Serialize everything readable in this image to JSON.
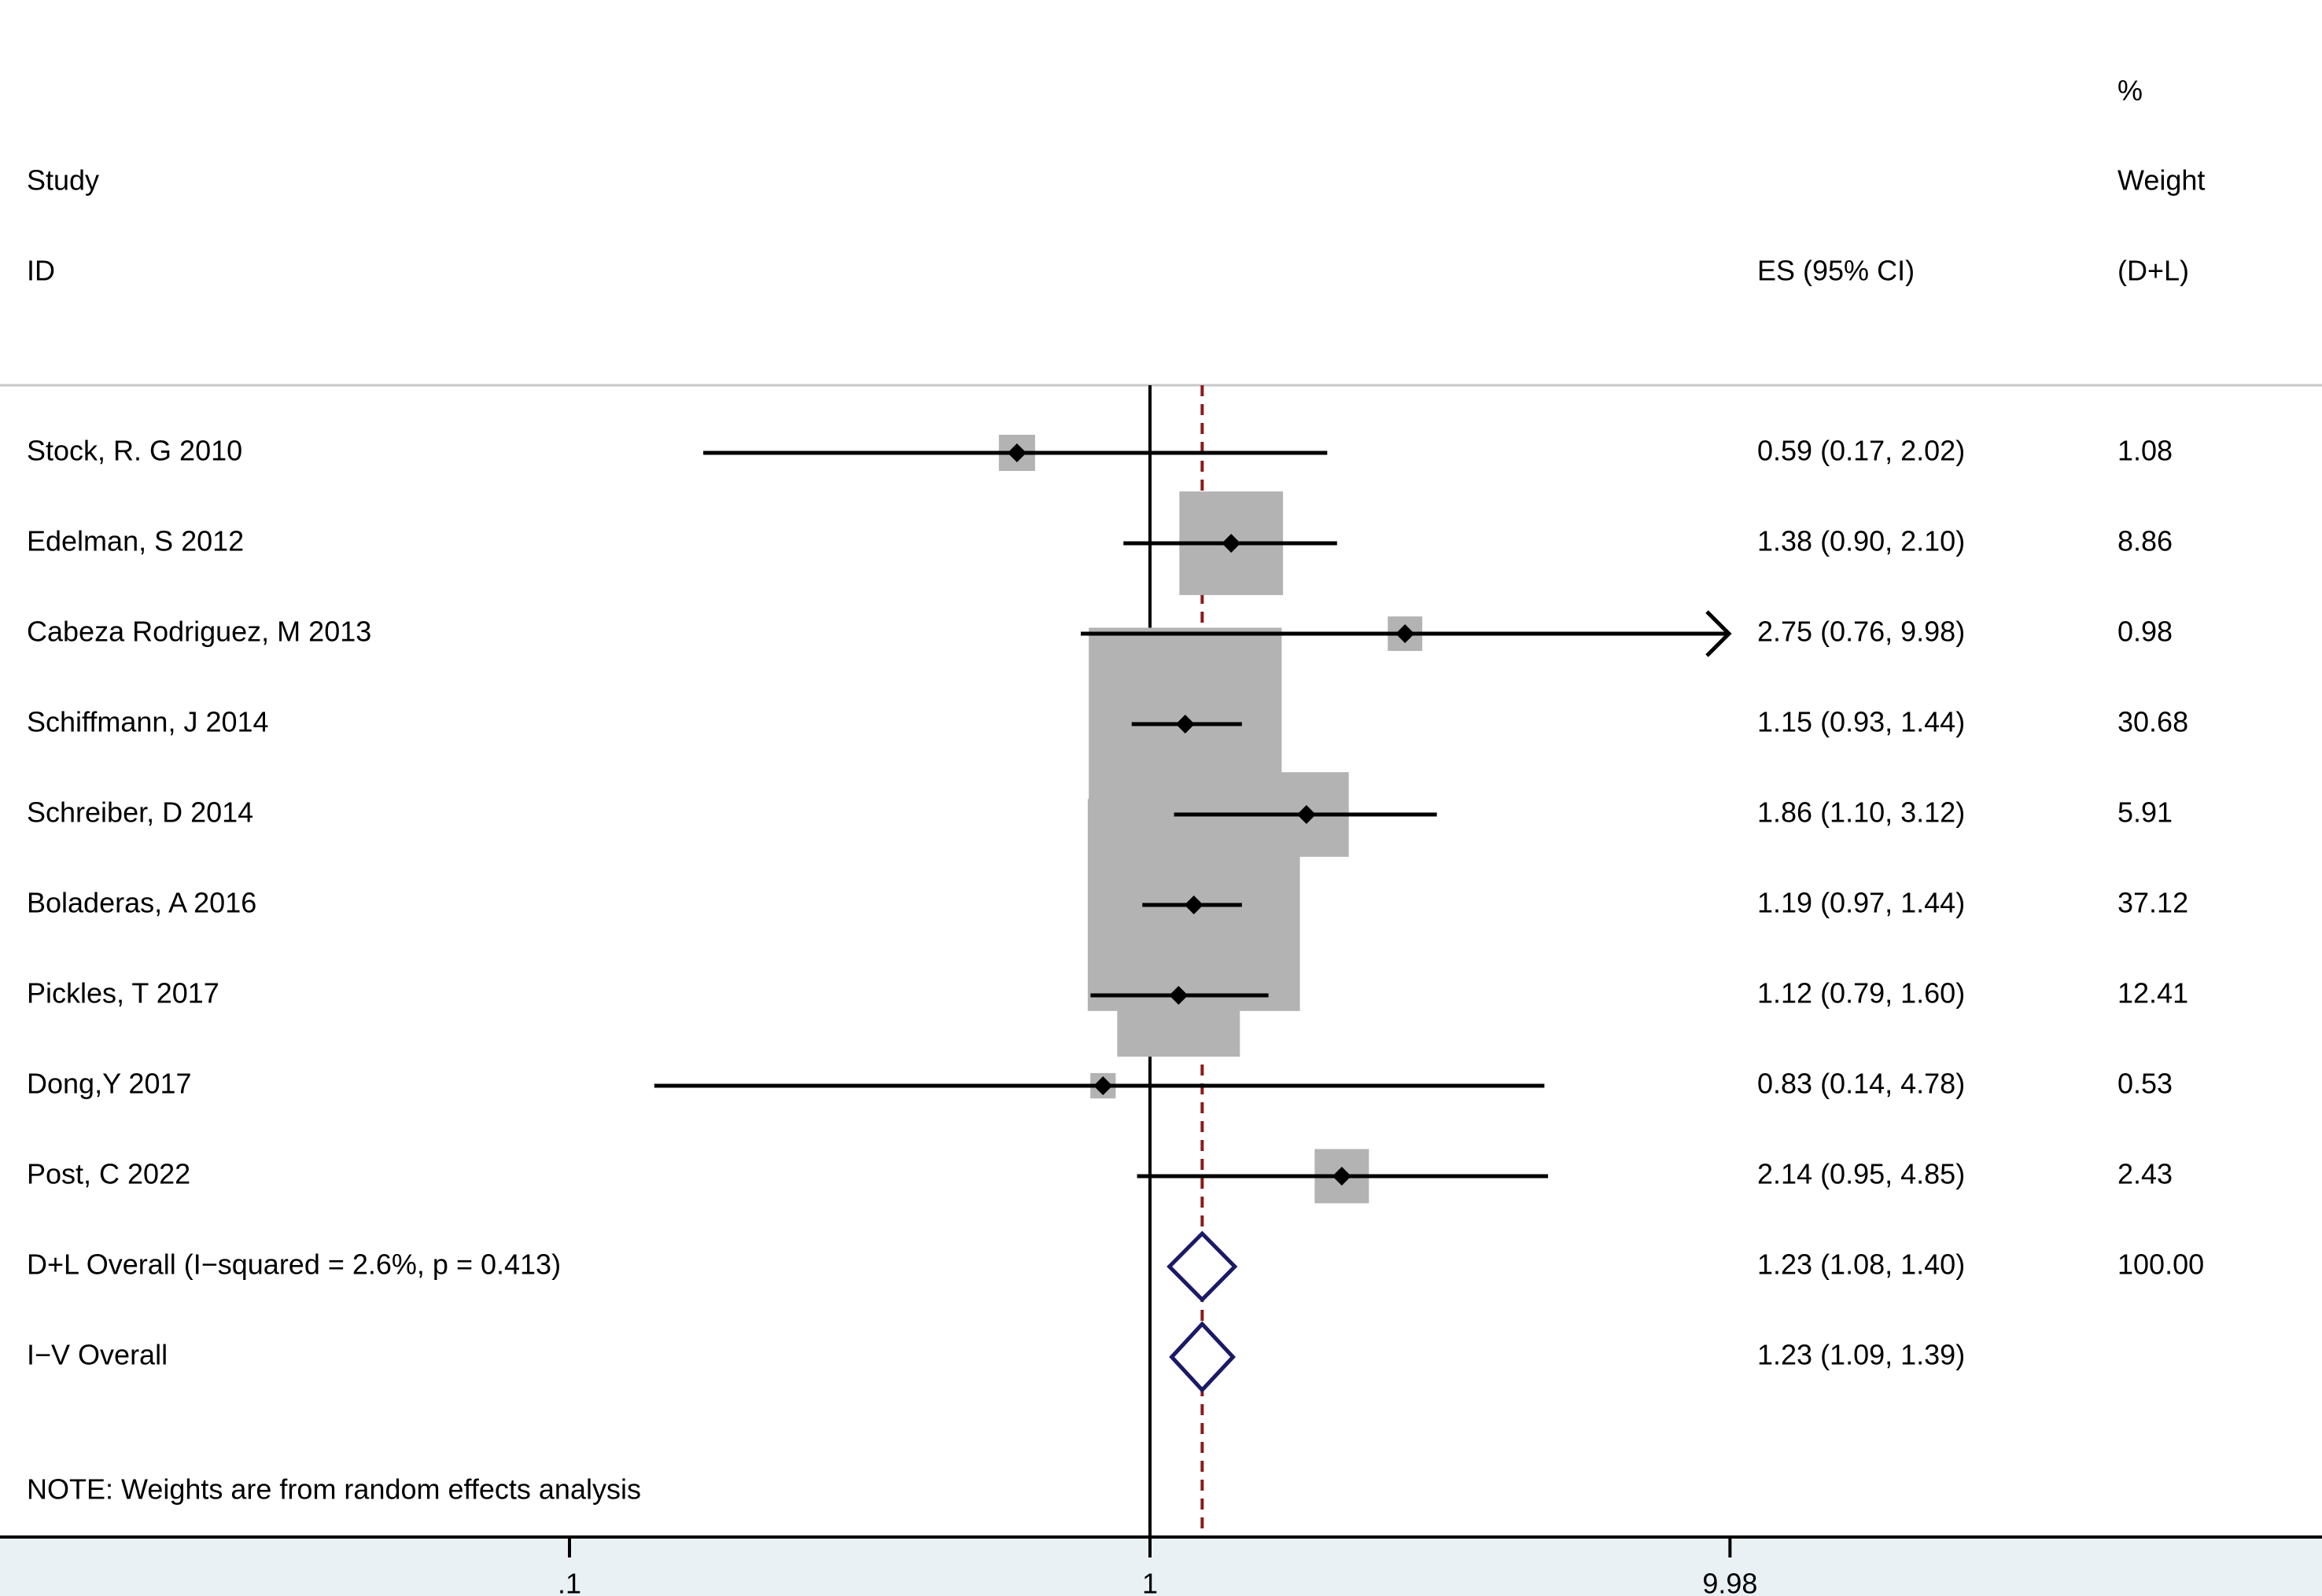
{
  "chart_data": {
    "type": "forest",
    "x_scale": "log",
    "null_line": 1,
    "overall_line": 1.23,
    "header": {
      "study": [
        "Study",
        "ID"
      ],
      "es": "ES (95% CI)",
      "weight": [
        "%",
        "Weight",
        "(D+L)"
      ]
    },
    "studies": [
      {
        "id": "Stock, R. G 2010",
        "es": 0.59,
        "lower": 0.17,
        "upper": 2.02,
        "label": "0.59 (0.17, 2.02)",
        "weight": 1.08,
        "weight_label": "1.08"
      },
      {
        "id": "Edelman, S 2012",
        "es": 1.38,
        "lower": 0.9,
        "upper": 2.1,
        "label": "1.38 (0.90, 2.10)",
        "weight": 8.86,
        "weight_label": "8.86"
      },
      {
        "id": "Cabeza Rodriguez, M 2013",
        "es": 2.75,
        "lower": 0.76,
        "upper": 9.98,
        "label": "2.75 (0.76, 9.98)",
        "weight": 0.98,
        "weight_label": "0.98",
        "arrow_right": true
      },
      {
        "id": "Schiffmann, J 2014",
        "es": 1.15,
        "lower": 0.93,
        "upper": 1.44,
        "label": "1.15 (0.93, 1.44)",
        "weight": 30.68,
        "weight_label": "30.68"
      },
      {
        "id": "Schreiber, D 2014",
        "es": 1.86,
        "lower": 1.1,
        "upper": 3.12,
        "label": "1.86 (1.10, 3.12)",
        "weight": 5.91,
        "weight_label": "5.91"
      },
      {
        "id": "Boladeras, A 2016",
        "es": 1.19,
        "lower": 0.97,
        "upper": 1.44,
        "label": "1.19 (0.97, 1.44)",
        "weight": 37.12,
        "weight_label": "37.12"
      },
      {
        "id": "Pickles, T 2017",
        "es": 1.12,
        "lower": 0.79,
        "upper": 1.6,
        "label": "1.12 (0.79, 1.60)",
        "weight": 12.41,
        "weight_label": "12.41"
      },
      {
        "id": "Dong,Y 2017",
        "es": 0.83,
        "lower": 0.14,
        "upper": 4.78,
        "label": "0.83 (0.14, 4.78)",
        "weight": 0.53,
        "weight_label": "0.53"
      },
      {
        "id": "Post, C 2022",
        "es": 2.14,
        "lower": 0.95,
        "upper": 4.85,
        "label": "2.14 (0.95, 4.85)",
        "weight": 2.43,
        "weight_label": "2.43"
      }
    ],
    "overall": [
      {
        "id": "D+L Overall  (I−squared = 2.6%, p = 0.413)",
        "es": 1.23,
        "lower": 1.08,
        "upper": 1.4,
        "label": "1.23 (1.08, 1.40)",
        "weight_label": "100.00"
      },
      {
        "id": "I−V Overall",
        "es": 1.23,
        "lower": 1.09,
        "upper": 1.39,
        "label": "1.23 (1.09, 1.39)",
        "weight_label": ""
      }
    ],
    "note": "NOTE: Weights are from random effects analysis",
    "x_ticks": [
      {
        "value": 0.1,
        "label": ".1"
      },
      {
        "value": 1,
        "label": "1"
      },
      {
        "value": 9.98,
        "label": "9.98"
      }
    ],
    "colors": {
      "ci_line": "#000000",
      "box": "#b3b3b3",
      "diamond": "#1a1a66",
      "overall_line": "#8b1a1a",
      "axis_band": "#eaf1f4"
    }
  }
}
